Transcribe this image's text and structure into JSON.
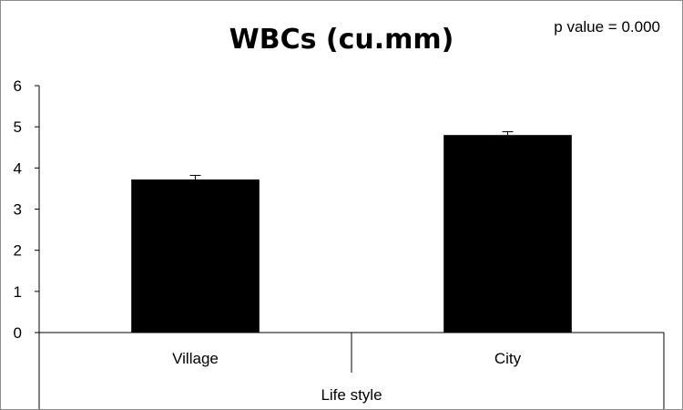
{
  "chart_data": {
    "type": "bar",
    "title": "WBCs (cu.mm)",
    "annotation": "p value = 0.000",
    "categories": [
      "Village",
      "City"
    ],
    "values": [
      3.72,
      4.8
    ],
    "error": [
      0.1,
      0.08
    ],
    "xlabel": "Life style",
    "ylabel": "",
    "ylim": [
      0,
      6
    ],
    "yticks": [
      0,
      1,
      2,
      3,
      4,
      5,
      6
    ],
    "bar_color": "#000000",
    "grid": false,
    "legend": false
  }
}
